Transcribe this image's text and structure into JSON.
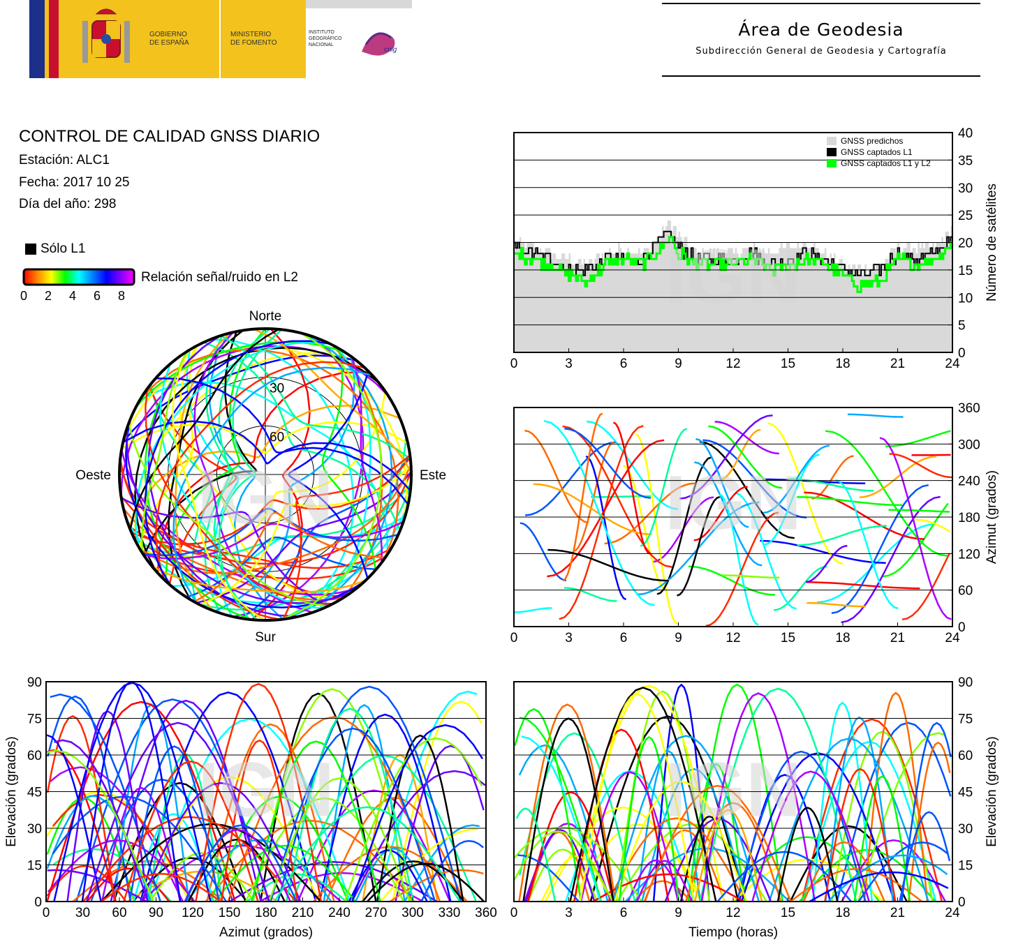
{
  "header": {
    "logo_gobierno": "GOBIERNO\nDE ESPAÑA",
    "logo_ministerio": "MINISTERIO\nDE FOMENTO",
    "logo_instituto": "INSTITUTO\nGEOGRÁFICO\nNACIONAL",
    "logo_cnig": "cnig",
    "area_title": "Área de Geodesia",
    "area_subtitle": "Subdirección General de Geodesia y Cartografía"
  },
  "info": {
    "title": "CONTROL DE CALIDAD GNSS DIARIO",
    "station": "Estación: ALC1",
    "date": "Fecha: 2017 10 25",
    "doy": "Día del año: 298"
  },
  "legend": {
    "solo_l1": "Sólo L1",
    "snr_label": "Relación señal/ruido en L2",
    "snr_ticks": [
      "0",
      "2",
      "4",
      "6",
      "8"
    ],
    "snr_colors": [
      "#ff0000",
      "#ff8800",
      "#ffff00",
      "#00ff00",
      "#00ffff",
      "#0080ff",
      "#0000ff",
      "#8000ff",
      "#ff00ff"
    ]
  },
  "watermark": "IGN",
  "chart_data": [
    {
      "type": "area",
      "id": "satellites",
      "ylabel": "Número de satélites",
      "xlim": [
        0,
        24
      ],
      "ylim": [
        0,
        40
      ],
      "x_ticks": [
        0,
        3,
        6,
        9,
        12,
        15,
        18,
        21,
        24
      ],
      "y_ticks": [
        0,
        5,
        10,
        15,
        20,
        25,
        30,
        35,
        40
      ],
      "grid": true,
      "legend_position": "top-right",
      "x": [
        0,
        1,
        2,
        3,
        4,
        5,
        6,
        7,
        8,
        8.5,
        9,
        10,
        11,
        12,
        13,
        14,
        15,
        16,
        17,
        18,
        19,
        20,
        21,
        22,
        23,
        24
      ],
      "series": [
        {
          "name": "GNSS predichos",
          "color": "#d9d9d9",
          "values": [
            20,
            19,
            18,
            17,
            16,
            18,
            19,
            18,
            21,
            24,
            21,
            18,
            18,
            18,
            19,
            18,
            19,
            20,
            18,
            16,
            15,
            16,
            19,
            19,
            19,
            23
          ]
        },
        {
          "name": "GNSS captados L1",
          "color": "#000000",
          "values": [
            19,
            18,
            17,
            15,
            15,
            17,
            17,
            17,
            20,
            22,
            19,
            17,
            17,
            17,
            18,
            16,
            17,
            18,
            17,
            15,
            14,
            15,
            18,
            17,
            18,
            21
          ]
        },
        {
          "name": "GNSS captados L1 y L2",
          "color": "#00ff00",
          "values": [
            18,
            17,
            16,
            14,
            13,
            16,
            17,
            16,
            19,
            21,
            18,
            16,
            16,
            16,
            17,
            15,
            16,
            17,
            16,
            14,
            12,
            13,
            17,
            16,
            17,
            20
          ]
        }
      ]
    },
    {
      "type": "scatter",
      "id": "azimuth_vs_time",
      "ylabel": "Azimut (grados)",
      "xlim": [
        0,
        24
      ],
      "ylim": [
        0,
        360
      ],
      "x_ticks": [
        0,
        3,
        6,
        9,
        12,
        15,
        18,
        21,
        24
      ],
      "y_ticks": [
        0,
        60,
        120,
        180,
        240,
        300,
        360
      ],
      "grid": true
    },
    {
      "type": "scatter",
      "id": "elevation_vs_azimuth",
      "xlabel": "Azimut (grados)",
      "ylabel": "Elevación (grados)",
      "xlim": [
        0,
        360
      ],
      "ylim": [
        0,
        90
      ],
      "x_ticks": [
        0,
        30,
        60,
        90,
        120,
        150,
        180,
        210,
        240,
        270,
        300,
        330,
        360
      ],
      "y_ticks": [
        0,
        15,
        30,
        45,
        60,
        75,
        90
      ],
      "grid": true
    },
    {
      "type": "scatter",
      "id": "elevation_vs_time",
      "xlabel": "Tiempo (horas)",
      "ylabel": "Elevación (grados)",
      "xlim": [
        0,
        24
      ],
      "ylim": [
        0,
        90
      ],
      "x_ticks": [
        0,
        3,
        6,
        9,
        12,
        15,
        18,
        21,
        24
      ],
      "y_ticks": [
        0,
        15,
        30,
        45,
        60,
        75,
        90
      ],
      "grid": true
    },
    {
      "type": "scatter",
      "id": "skyplot",
      "labels": {
        "north": "Norte",
        "south": "Sur",
        "east": "Este",
        "west": "Oeste"
      },
      "rings": [
        "30",
        "60"
      ]
    }
  ]
}
